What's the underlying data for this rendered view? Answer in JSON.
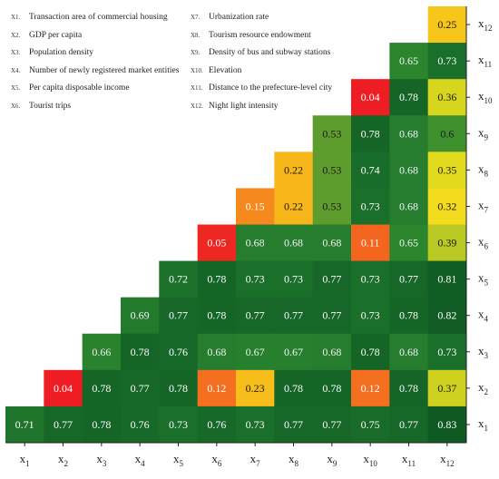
{
  "chart_data": {
    "type": "heatmap",
    "title": "",
    "xlabel": "",
    "ylabel": "",
    "variables": [
      {
        "code": "x1",
        "name": "Transaction area of commercial housing"
      },
      {
        "code": "x2",
        "name": "GDP per capita"
      },
      {
        "code": "x3",
        "name": "Population density"
      },
      {
        "code": "x4",
        "name": "Number of newly registered market entities"
      },
      {
        "code": "x5",
        "name": "Per capita disposable income"
      },
      {
        "code": "x6",
        "name": "Tourist trips"
      },
      {
        "code": "x7",
        "name": "Urbanization rate"
      },
      {
        "code": "x8",
        "name": "Tourism resource endowment"
      },
      {
        "code": "x9",
        "name": "Density of bus and subway stations"
      },
      {
        "code": "x10",
        "name": "Elevation"
      },
      {
        "code": "x11",
        "name": "Distance to the prefecture-level city"
      },
      {
        "code": "x12",
        "name": "Night light intensity"
      }
    ],
    "x_ticks": [
      "x1",
      "x2",
      "x3",
      "x4",
      "x5",
      "x6",
      "x7",
      "x8",
      "x9",
      "x10",
      "x11",
      "x12"
    ],
    "y_ticks": [
      "x1",
      "x2",
      "x3",
      "x4",
      "x5",
      "x6",
      "x7",
      "x8",
      "x9",
      "x10",
      "x11",
      "x12"
    ],
    "rows": [
      {
        "y": "x12",
        "values": [
          null,
          null,
          null,
          null,
          null,
          null,
          null,
          null,
          null,
          null,
          null,
          0.25
        ]
      },
      {
        "y": "x11",
        "values": [
          null,
          null,
          null,
          null,
          null,
          null,
          null,
          null,
          null,
          null,
          0.65,
          0.73
        ]
      },
      {
        "y": "x10",
        "values": [
          null,
          null,
          null,
          null,
          null,
          null,
          null,
          null,
          null,
          0.04,
          0.78,
          0.36
        ]
      },
      {
        "y": "x9",
        "values": [
          null,
          null,
          null,
          null,
          null,
          null,
          null,
          null,
          0.53,
          0.78,
          0.68,
          0.6
        ]
      },
      {
        "y": "x8",
        "values": [
          null,
          null,
          null,
          null,
          null,
          null,
          null,
          0.22,
          0.53,
          0.74,
          0.68,
          0.35
        ]
      },
      {
        "y": "x7",
        "values": [
          null,
          null,
          null,
          null,
          null,
          null,
          0.15,
          0.22,
          0.53,
          0.73,
          0.68,
          0.32
        ]
      },
      {
        "y": "x6",
        "values": [
          null,
          null,
          null,
          null,
          null,
          0.05,
          0.68,
          0.68,
          0.68,
          0.11,
          0.65,
          0.39
        ]
      },
      {
        "y": "x5",
        "values": [
          null,
          null,
          null,
          null,
          0.72,
          0.78,
          0.73,
          0.73,
          0.77,
          0.73,
          0.77,
          0.81
        ]
      },
      {
        "y": "x4",
        "values": [
          null,
          null,
          null,
          0.69,
          0.77,
          0.78,
          0.77,
          0.77,
          0.77,
          0.73,
          0.78,
          0.82
        ]
      },
      {
        "y": "x3",
        "values": [
          null,
          null,
          0.66,
          0.78,
          0.76,
          0.68,
          0.67,
          0.67,
          0.68,
          0.78,
          0.68,
          0.73
        ]
      },
      {
        "y": "x2",
        "values": [
          null,
          0.04,
          0.78,
          0.77,
          0.78,
          0.12,
          0.23,
          0.78,
          0.78,
          0.12,
          0.78,
          0.37
        ]
      },
      {
        "y": "x1",
        "values": [
          0.71,
          0.77,
          0.78,
          0.76,
          0.73,
          0.76,
          0.73,
          0.77,
          0.77,
          0.75,
          0.77,
          0.83
        ]
      }
    ],
    "color_scale": [
      "#ee1d23",
      "#f6821f",
      "#f7c21a",
      "#f0e01c",
      "#8cb428",
      "#5c9b2e",
      "#2f8a2e",
      "#1a6f2b",
      "#0f5a23"
    ],
    "grid": false,
    "legend_position": "top-left"
  }
}
